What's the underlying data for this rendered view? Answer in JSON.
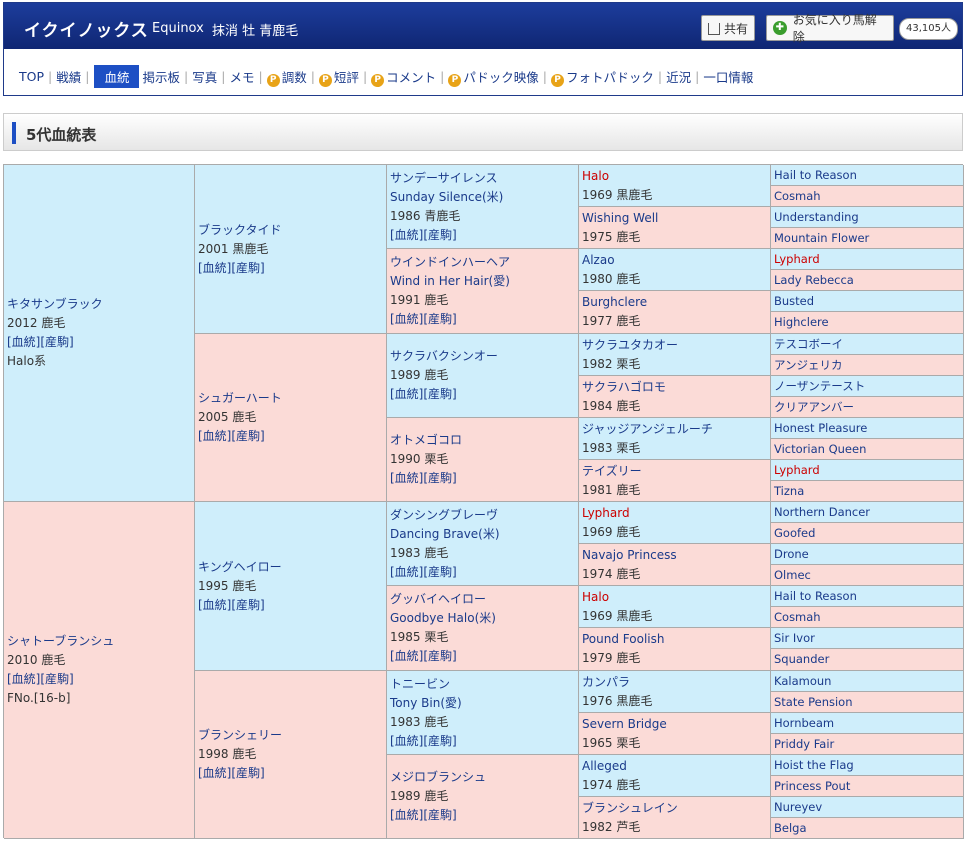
{
  "header": {
    "name": "イクイノックス",
    "eng": "Equinox",
    "status": "抹消 牡 青鹿毛",
    "share": "共有",
    "fav": "お気に入り馬解除",
    "count": "43,105人"
  },
  "nav": [
    "TOP",
    "戦績",
    "血統",
    "掲示板",
    "写真",
    "メモ",
    "調数",
    "短評",
    "コメント",
    "パドック映像",
    "フォトパドック",
    "近況",
    "一口情報"
  ],
  "section": "5代血統表",
  "g1": [
    {
      "name": "キタサンブラック",
      "year": "2012 鹿毛",
      "links": "[血統][産駒]",
      "extra": "Halo系"
    },
    {
      "name": "シャトーブランシュ",
      "year": "2010 鹿毛",
      "links": "[血統][産駒]",
      "extra": "FNo.[16-b]"
    }
  ],
  "g2": [
    {
      "name": "ブラックタイド",
      "year": "2001 黒鹿毛",
      "links": "[血統][産駒]"
    },
    {
      "name": "シュガーハート",
      "year": "2005 鹿毛",
      "links": "[血統][産駒]"
    },
    {
      "name": "キングヘイロー",
      "year": "1995 鹿毛",
      "links": "[血統][産駒]"
    },
    {
      "name": "ブランシェリー",
      "year": "1998 鹿毛",
      "links": "[血統][産駒]"
    }
  ],
  "g3": [
    {
      "name": "サンデーサイレンス",
      "sub": "Sunday Silence(米)",
      "year": "1986 青鹿毛",
      "links": "[血統][産駒]"
    },
    {
      "name": "ウインドインハーヘア",
      "sub": "Wind in Her Hair(愛)",
      "year": "1991 鹿毛",
      "links": "[血統][産駒]"
    },
    {
      "name": "サクラバクシンオー",
      "sub": "",
      "year": "1989 鹿毛",
      "links": "[血統][産駒]"
    },
    {
      "name": "オトメゴコロ",
      "sub": "",
      "year": "1990 栗毛",
      "links": "[血統][産駒]"
    },
    {
      "name": "ダンシングブレーヴ",
      "sub": "Dancing Brave(米)",
      "year": "1983 鹿毛",
      "links": "[血統][産駒]"
    },
    {
      "name": "グッバイヘイロー",
      "sub": "Goodbye Halo(米)",
      "year": "1985 栗毛",
      "links": "[血統][産駒]"
    },
    {
      "name": "トニービン",
      "sub": "Tony Bin(愛)",
      "year": "1983 鹿毛",
      "links": "[血統][産駒]"
    },
    {
      "name": "メジロブランシュ",
      "sub": "",
      "year": "1989 鹿毛",
      "links": "[血統][産駒]"
    }
  ],
  "g4": [
    {
      "name": "Halo",
      "year": "1969 黒鹿毛"
    },
    {
      "name": "Wishing Well",
      "year": "1975 鹿毛"
    },
    {
      "name": "Alzao",
      "year": "1980 鹿毛"
    },
    {
      "name": "Burghclere",
      "year": "1977 鹿毛"
    },
    {
      "name": "サクラユタカオー",
      "year": "1982 栗毛"
    },
    {
      "name": "サクラハゴロモ",
      "year": "1984 鹿毛"
    },
    {
      "name": "ジャッジアンジェルーチ",
      "year": "1983 栗毛"
    },
    {
      "name": "テイズリー",
      "year": "1981 鹿毛"
    },
    {
      "name": "Lyphard",
      "year": "1969 鹿毛"
    },
    {
      "name": "Navajo Princess",
      "year": "1974 鹿毛"
    },
    {
      "name": "Halo",
      "year": "1969 黒鹿毛"
    },
    {
      "name": "Pound Foolish",
      "year": "1979 鹿毛"
    },
    {
      "name": "カンパラ",
      "year": "1976 黒鹿毛"
    },
    {
      "name": "Severn Bridge",
      "year": "1965 栗毛"
    },
    {
      "name": "Alleged",
      "year": "1974 鹿毛"
    },
    {
      "name": "ブランシュレイン",
      "year": "1982 芦毛"
    }
  ],
  "g5": [
    "Hail to Reason",
    "Cosmah",
    "Understanding",
    "Mountain Flower",
    "Lyphard",
    "Lady Rebecca",
    "Busted",
    "Highclere",
    "テスコボーイ",
    "アンジェリカ",
    "ノーザンテースト",
    "クリアアンバー",
    "Honest Pleasure",
    "Victorian Queen",
    "Lyphard",
    "Tizna",
    "Northern Dancer",
    "Goofed",
    "Drone",
    "Olmec",
    "Hail to Reason",
    "Cosmah",
    "Sir Ivor",
    "Squander",
    "Kalamoun",
    "State Pension",
    "Hornbeam",
    "Priddy Fair",
    "Hoist the Flag",
    "Princess Pout",
    "Nureyev",
    "Belga"
  ],
  "colors": {
    "male": "#cfeefb",
    "female": "#fbdbd7",
    "highlight": "#cc0000",
    "link": "#1a3a8a",
    "headerBg": "#1d3d9c"
  },
  "highlighted": {
    "g4": [
      0,
      8,
      10
    ],
    "g5": [
      4,
      14
    ]
  }
}
